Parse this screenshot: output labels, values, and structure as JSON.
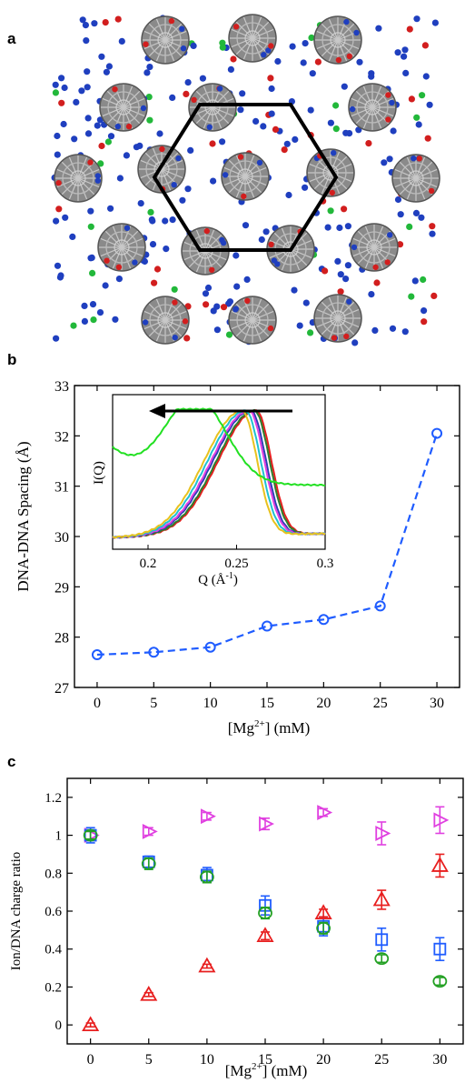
{
  "panels": {
    "a": "a",
    "b": "b",
    "c": "c"
  },
  "colors": {
    "dna": "#777777",
    "blue_ion": "#1f3fbf",
    "red_ion": "#d21e1e",
    "green_ion": "#22b83a",
    "series_blue": "#1f5cff",
    "magenta": "#e040e0",
    "red": "#e81e1e",
    "green": "#23a023",
    "hexagon": "#000000"
  },
  "chart_data": [
    {
      "type": "line",
      "panel": "b",
      "xlabel": "[Mg2+] (mM)",
      "xlabel_parts": {
        "main": "[Mg",
        "sup": "2+",
        "tail": "] (mM)"
      },
      "ylabel": "DNA-DNA Spacing (Å)",
      "xlim": [
        -2,
        32
      ],
      "ylim": [
        27,
        33
      ],
      "xticks": [
        0,
        5,
        10,
        15,
        20,
        25,
        30
      ],
      "yticks": [
        27,
        28,
        29,
        30,
        31,
        32,
        33
      ],
      "series": [
        {
          "x": [
            0,
            5,
            10,
            15,
            20,
            25,
            30
          ],
          "values": [
            27.65,
            27.7,
            27.8,
            28.22,
            28.35,
            28.62,
            32.05
          ],
          "color": "#1f5cff",
          "style": "dashed",
          "marker": "circle"
        }
      ],
      "inset": {
        "type": "line",
        "xlabel": "Q (Å-1)",
        "xlabel_parts": {
          "main": "Q (Å",
          "sup": "-1",
          "tail": ")"
        },
        "ylabel": "I(Q)",
        "xlim": [
          0.18,
          0.3
        ],
        "xticks": [
          0.2,
          0.25,
          0.3
        ],
        "arrow": "leftward",
        "peaks": [
          {
            "color": "#e81e1e",
            "center": 0.261
          },
          {
            "color": "#2e7d2e",
            "center": 0.26
          },
          {
            "color": "#2a3fb5",
            "center": 0.258
          },
          {
            "color": "#e040e0",
            "center": 0.257
          },
          {
            "color": "#20c0d0",
            "center": 0.255
          },
          {
            "color": "#e8c21e",
            "center": 0.253
          },
          {
            "color": "#22e022",
            "center": 0.227
          }
        ]
      }
    },
    {
      "type": "scatter",
      "panel": "c",
      "xlabel": "[Mg2+] (mM)",
      "xlabel_parts": {
        "main": "[Mg",
        "sup": "2+",
        "tail": "] (mM)"
      },
      "ylabel": "Ion/DNA charge ratio",
      "xlim": [
        -2,
        32
      ],
      "ylim": [
        -0.1,
        1.3
      ],
      "xticks": [
        0,
        5,
        10,
        15,
        20,
        25,
        30
      ],
      "yticks": [
        0,
        0.2,
        0.4,
        0.6,
        0.8,
        1,
        1.2
      ],
      "ytick_labels": [
        "0",
        "0.2",
        "0.4",
        "0.6",
        "0.8",
        "1",
        "1.2"
      ],
      "series": [
        {
          "marker": "triangle-right",
          "color": "#e040e0",
          "x": [
            0,
            5,
            10,
            15,
            20,
            25,
            30
          ],
          "values": [
            1.0,
            1.02,
            1.1,
            1.06,
            1.12,
            1.01,
            1.08
          ],
          "err": [
            0.02,
            0.02,
            0.02,
            0.03,
            0.02,
            0.06,
            0.07
          ]
        },
        {
          "marker": "square",
          "color": "#1f5cff",
          "x": [
            0,
            5,
            10,
            15,
            20,
            25,
            30
          ],
          "values": [
            1.0,
            0.86,
            0.79,
            0.63,
            0.52,
            0.45,
            0.4
          ],
          "err": [
            0.04,
            0.03,
            0.04,
            0.05,
            0.05,
            0.06,
            0.06
          ]
        },
        {
          "marker": "circle",
          "color": "#23a023",
          "x": [
            0,
            5,
            10,
            15,
            20,
            25,
            30
          ],
          "values": [
            1.0,
            0.85,
            0.78,
            0.59,
            0.51,
            0.35,
            0.23
          ],
          "err": [
            0.02,
            0.03,
            0.03,
            0.03,
            0.03,
            0.02,
            0.02
          ]
        },
        {
          "marker": "triangle-up",
          "color": "#e81e1e",
          "x": [
            0,
            5,
            10,
            15,
            20,
            25,
            30
          ],
          "values": [
            0.0,
            0.16,
            0.31,
            0.47,
            0.59,
            0.66,
            0.84
          ],
          "err": [
            0.01,
            0.01,
            0.01,
            0.02,
            0.02,
            0.05,
            0.06
          ]
        }
      ]
    }
  ]
}
